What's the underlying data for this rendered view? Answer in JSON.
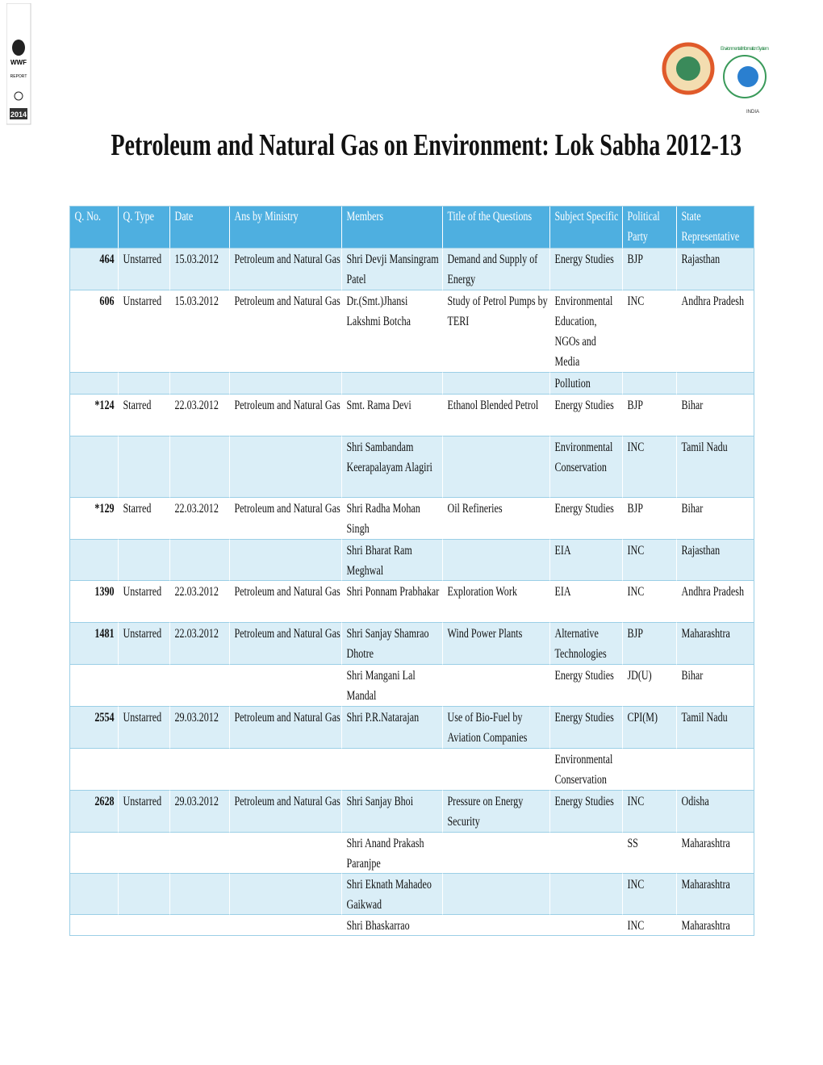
{
  "logos": {
    "left": {
      "brand": "WWF",
      "label": "REPORT",
      "year": "2014"
    },
    "right": {
      "system": "Environmental Information System",
      "country": "INDIA"
    }
  },
  "title": "Petroleum and Natural Gas on Environment: Lok Sabha 2012-13",
  "table": {
    "header": [
      "Q. No.",
      "Q. Type",
      "Date",
      "Ans by Ministry",
      "Members",
      "Title of the Questions",
      "Subject Specific",
      "Political Party",
      "State Representative"
    ],
    "rows": [
      [
        "464",
        "Unstarred",
        "15.03.2012",
        "Petroleum and Natural Gas",
        "Shri Devji Mansingram Patel",
        "Demand and Supply of Energy",
        "Energy Studies",
        "BJP",
        "Rajasthan"
      ],
      [
        "606",
        "Unstarred",
        "15.03.2012",
        "Petroleum and Natural Gas",
        "Dr.(Smt.)Jhansi Lakshmi Botcha",
        "Study of Petrol Pumps by TERI",
        "Environmental Education, NGOs and Media",
        "INC",
        "Andhra Pradesh"
      ],
      [
        null,
        null,
        null,
        null,
        null,
        null,
        "Pollution",
        null,
        null
      ],
      [
        "*124",
        "Starred",
        "22.03.2012",
        "Petroleum and Natural Gas",
        "Smt. Rama Devi",
        "Ethanol Blended Petrol",
        "Energy Studies",
        "BJP",
        "Bihar"
      ],
      [
        null,
        null,
        null,
        null,
        "Shri Sambandam Keerapalayam Alagiri",
        null,
        "Environmental Conservation",
        "INC",
        "Tamil Nadu"
      ],
      [
        "*129",
        "Starred",
        "22.03.2012",
        "Petroleum and Natural Gas",
        "Shri Radha Mohan Singh",
        "Oil Refineries",
        "Energy Studies",
        "BJP",
        "Bihar"
      ],
      [
        null,
        null,
        null,
        null,
        "Shri Bharat Ram Meghwal",
        null,
        "EIA",
        "INC",
        "Rajasthan"
      ],
      [
        "1390",
        "Unstarred",
        "22.03.2012",
        "Petroleum and Natural Gas",
        "Shri Ponnam Prabhakar",
        "Exploration Work",
        "EIA",
        "INC",
        "Andhra Pradesh"
      ],
      [
        "1481",
        "Unstarred",
        "22.03.2012",
        "Petroleum and Natural Gas",
        "Shri Sanjay Shamrao Dhotre",
        "Wind Power Plants",
        "Alternative Technologies",
        "BJP",
        "Maharashtra"
      ],
      [
        null,
        null,
        null,
        null,
        "Shri Mangani Lal Mandal",
        null,
        "Energy Studies",
        "JD(U)",
        "Bihar"
      ],
      [
        "2554",
        "Unstarred",
        "29.03.2012",
        "Petroleum and Natural Gas",
        "Shri P.R.Natarajan",
        "Use of Bio-Fuel by Aviation Companies",
        "Energy Studies",
        "CPI(M)",
        "Tamil Nadu"
      ],
      [
        null,
        null,
        null,
        null,
        null,
        null,
        "Environmental Conservation",
        null,
        null
      ],
      [
        "2628",
        "Unstarred",
        "29.03.2012",
        "Petroleum and Natural Gas",
        "Shri Sanjay Bhoi",
        "Pressure on Energy Security",
        "Energy Studies",
        "INC",
        "Odisha"
      ],
      [
        null,
        null,
        null,
        null,
        "Shri Anand Prakash Paranjpe",
        null,
        null,
        "SS",
        "Maharashtra"
      ],
      [
        null,
        null,
        null,
        null,
        "Shri Eknath Mahadeo Gaikwad",
        null,
        null,
        "INC",
        "Maharashtra"
      ],
      [
        null,
        null,
        null,
        null,
        "Shri Bhaskarrao",
        null,
        null,
        "INC",
        "Maharashtra"
      ]
    ]
  }
}
